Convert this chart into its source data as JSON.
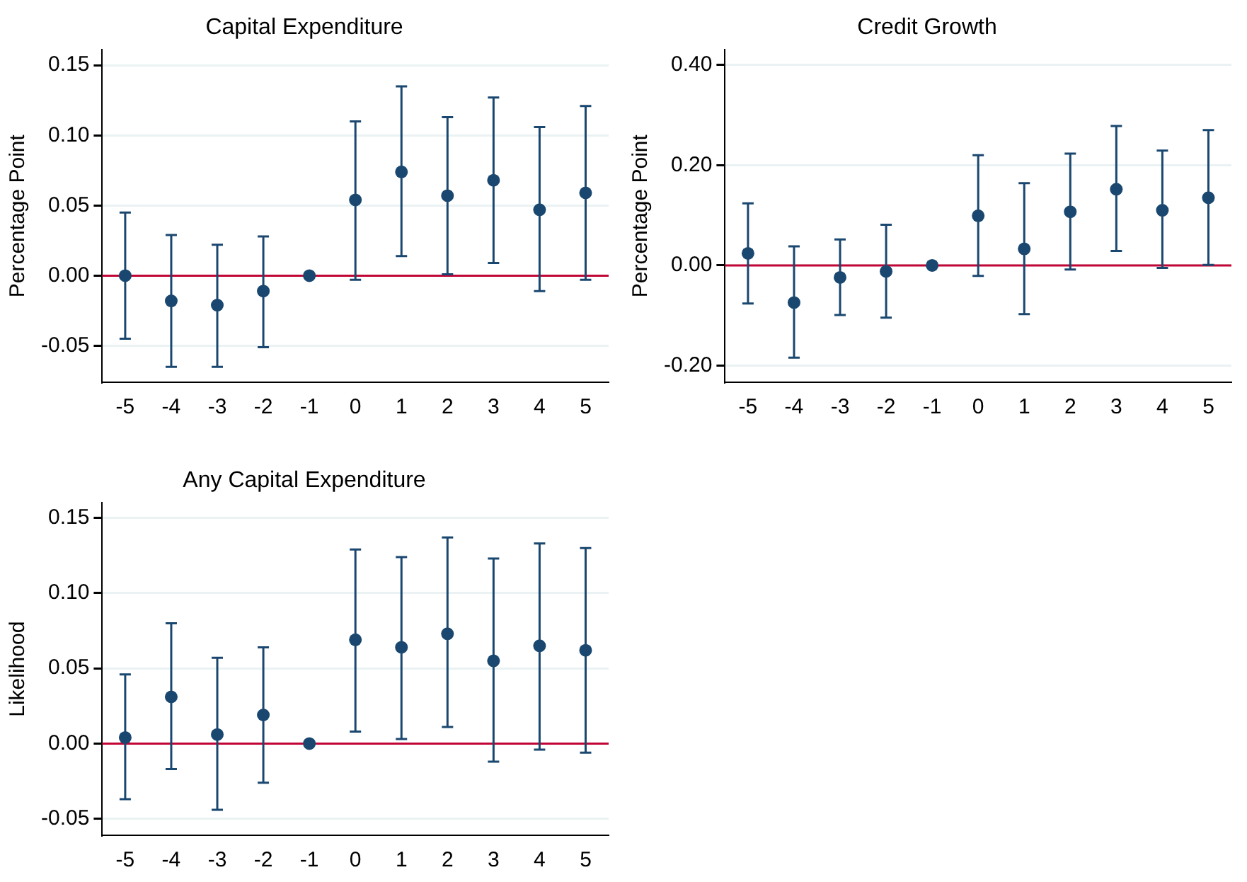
{
  "chart_data": [
    {
      "type": "scatter",
      "title": "Capital Expenditure",
      "ylabel": "Percentage Point",
      "categories": [
        "-5",
        "-4",
        "-3",
        "-2",
        "-1",
        "0",
        "1",
        "2",
        "3",
        "4",
        "5"
      ],
      "series": [
        {
          "color": "#1a476f",
          "values": [
            0,
            -0.018,
            -0.021,
            -0.011,
            0,
            0.054,
            0.074,
            0.057,
            0.068,
            0.047,
            0.059
          ],
          "errors": [
            [
              -0.045,
              0.045
            ],
            [
              -0.065,
              0.029
            ],
            [
              -0.065,
              0.022
            ],
            [
              -0.051,
              0.028
            ],
            null,
            [
              -0.003,
              0.11
            ],
            [
              0.014,
              0.135
            ],
            [
              0.001,
              0.113
            ],
            [
              0.009,
              0.127
            ],
            [
              -0.011,
              0.106
            ],
            [
              -0.003,
              0.121
            ]
          ]
        }
      ],
      "ylim": [
        -0.076,
        0.161
      ],
      "yticks": [
        {
          "value": -0.05,
          "label": "-0.05"
        },
        {
          "value": 0,
          "label": "0.00"
        },
        {
          "value": 0.05,
          "label": "0.05"
        },
        {
          "value": 0.1,
          "label": "0.10"
        },
        {
          "value": 0.15,
          "label": "0.15"
        }
      ],
      "ref_lines": [
        {
          "axis": "y",
          "value": 0,
          "color": "#c10534"
        }
      ],
      "grid": "y",
      "legend": false,
      "marker": "circle"
    },
    {
      "type": "scatter",
      "title": "Credit Growth",
      "ylabel": "Percentage Point",
      "categories": [
        "-5",
        "-4",
        "-3",
        "-2",
        "-1",
        "0",
        "1",
        "2",
        "3",
        "4",
        "5"
      ],
      "series": [
        {
          "color": "#1a476f",
          "values": [
            0.024,
            -0.074,
            -0.024,
            -0.012,
            0,
            0.099,
            0.033,
            0.107,
            0.152,
            0.11,
            0.135
          ],
          "errors": [
            [
              -0.076,
              0.124
            ],
            [
              -0.184,
              0.038
            ],
            [
              -0.099,
              0.052
            ],
            [
              -0.104,
              0.081
            ],
            null,
            [
              -0.021,
              0.22
            ],
            [
              -0.097,
              0.164
            ],
            [
              -0.008,
              0.223
            ],
            [
              0.029,
              0.278
            ],
            [
              -0.005,
              0.229
            ],
            [
              0.001,
              0.27
            ]
          ]
        }
      ],
      "ylim": [
        -0.233,
        0.43
      ],
      "yticks": [
        {
          "value": -0.2,
          "label": "-0.20"
        },
        {
          "value": 0,
          "label": "0.00"
        },
        {
          "value": 0.2,
          "label": "0.20"
        },
        {
          "value": 0.4,
          "label": "0.40"
        }
      ],
      "ref_lines": [
        {
          "axis": "y",
          "value": 0,
          "color": "#c10534"
        }
      ],
      "grid": "y",
      "legend": false,
      "marker": "circle"
    },
    {
      "type": "scatter",
      "title": "Any Capital Expenditure",
      "ylabel": "Likelihood",
      "categories": [
        "-5",
        "-4",
        "-3",
        "-2",
        "-1",
        "0",
        "1",
        "2",
        "3",
        "4",
        "5"
      ],
      "series": [
        {
          "color": "#1a476f",
          "values": [
            0.004,
            0.031,
            0.006,
            0.019,
            0,
            0.069,
            0.064,
            0.073,
            0.055,
            0.065,
            0.062
          ],
          "errors": [
            [
              -0.037,
              0.046
            ],
            [
              -0.017,
              0.08
            ],
            [
              -0.044,
              0.057
            ],
            [
              -0.026,
              0.064
            ],
            null,
            [
              0.008,
              0.129
            ],
            [
              0.003,
              0.124
            ],
            [
              0.011,
              0.137
            ],
            [
              -0.012,
              0.123
            ],
            [
              -0.004,
              0.133
            ],
            [
              -0.006,
              0.13
            ]
          ]
        }
      ],
      "ylim": [
        -0.061,
        0.16
      ],
      "yticks": [
        {
          "value": -0.05,
          "label": "-0.05"
        },
        {
          "value": 0,
          "label": "0.00"
        },
        {
          "value": 0.05,
          "label": "0.05"
        },
        {
          "value": 0.1,
          "label": "0.10"
        },
        {
          "value": 0.15,
          "label": "0.15"
        }
      ],
      "ref_lines": [
        {
          "axis": "y",
          "value": 0,
          "color": "#c10534"
        }
      ],
      "grid": "y",
      "legend": false,
      "marker": "circle"
    }
  ]
}
